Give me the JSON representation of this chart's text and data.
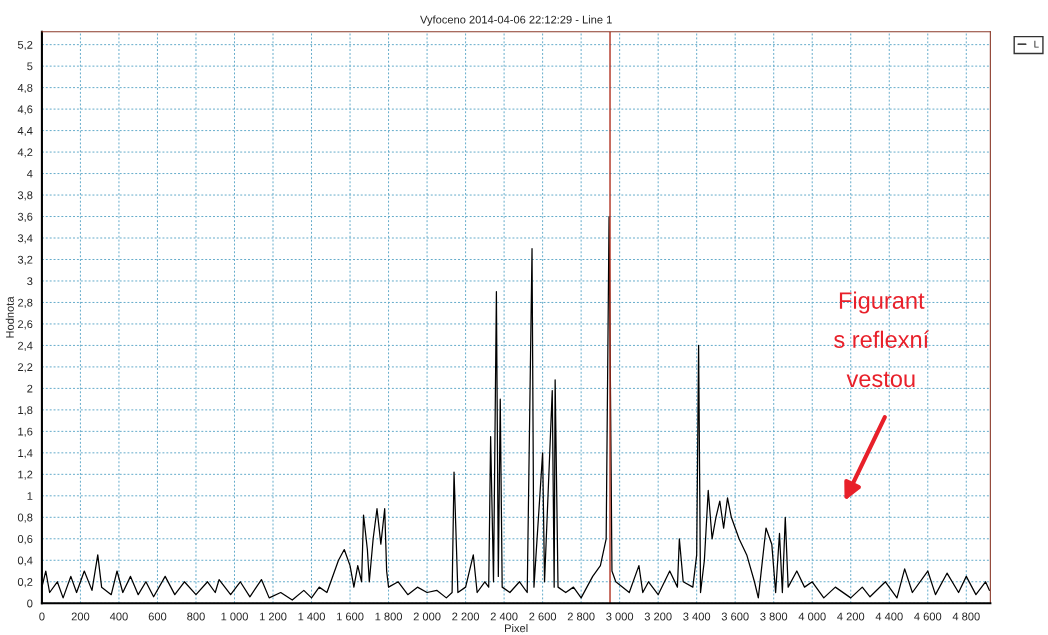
{
  "chart_data": {
    "type": "line",
    "title": "Vyfoceno 2014-04-06 22:12:29 - Line 1",
    "xlabel": "Pixel",
    "ylabel": "Hodnota",
    "xlim": [
      0,
      4925
    ],
    "ylim": [
      0,
      5.32
    ],
    "xticks": [
      0,
      200,
      400,
      600,
      800,
      {
        "value": 1000,
        "label": "1 000"
      },
      {
        "value": 1200,
        "label": "1 200"
      },
      {
        "value": 1400,
        "label": "1 400"
      },
      {
        "value": 1600,
        "label": "1 600"
      },
      {
        "value": 1800,
        "label": "1 800"
      },
      {
        "value": 2000,
        "label": "2 000"
      },
      {
        "value": 2200,
        "label": "2 200"
      },
      {
        "value": 2400,
        "label": "2 400"
      },
      {
        "value": 2600,
        "label": "2 600"
      },
      {
        "value": 2800,
        "label": "2 800"
      },
      {
        "value": 3000,
        "label": "3 000"
      },
      {
        "value": 3200,
        "label": "3 200"
      },
      {
        "value": 3400,
        "label": "3 400"
      },
      {
        "value": 3600,
        "label": "3 600"
      },
      {
        "value": 3800,
        "label": "3 800"
      },
      {
        "value": 4000,
        "label": "4 000"
      },
      {
        "value": 4200,
        "label": "4 200"
      },
      {
        "value": 4400,
        "label": "4 400"
      },
      {
        "value": 4600,
        "label": "4 600"
      },
      {
        "value": 4800,
        "label": "4 800"
      }
    ],
    "yticks": [
      0,
      {
        "value": 0.2,
        "label": "0,2"
      },
      {
        "value": 0.4,
        "label": "0,4"
      },
      {
        "value": 0.6,
        "label": "0,6"
      },
      {
        "value": 0.8,
        "label": "0,8"
      },
      1,
      {
        "value": 1.2,
        "label": "1,2"
      },
      {
        "value": 1.4,
        "label": "1,4"
      },
      {
        "value": 1.6,
        "label": "1,6"
      },
      {
        "value": 1.8,
        "label": "1,8"
      },
      2,
      {
        "value": 2.2,
        "label": "2,2"
      },
      {
        "value": 2.4,
        "label": "2,4"
      },
      {
        "value": 2.6,
        "label": "2,6"
      },
      {
        "value": 2.8,
        "label": "2,8"
      },
      3,
      {
        "value": 3.2,
        "label": "3,2"
      },
      {
        "value": 3.4,
        "label": "3,4"
      },
      {
        "value": 3.6,
        "label": "3,6"
      },
      {
        "value": 3.8,
        "label": "3,8"
      },
      4,
      {
        "value": 4.2,
        "label": "4,2"
      },
      {
        "value": 4.4,
        "label": "4,4"
      },
      {
        "value": 4.6,
        "label": "4,6"
      },
      {
        "value": 4.8,
        "label": "4,8"
      },
      5,
      {
        "value": 5.2,
        "label": "5,2"
      }
    ],
    "grid": true,
    "legend": "right",
    "marker": "none",
    "line_style": "solid",
    "ref_lines": [
      {
        "axis": "x",
        "value": 2950,
        "color": "#b03020",
        "line_style": "solid"
      }
    ],
    "annotations": [
      "Figurant\ns reflexní\nvestou"
    ],
    "series": [
      {
        "name": "L",
        "color": "#000000",
        "x": [
          0,
          20,
          40,
          80,
          110,
          150,
          180,
          220,
          260,
          290,
          310,
          360,
          390,
          420,
          460,
          500,
          540,
          580,
          640,
          690,
          740,
          800,
          860,
          900,
          920,
          980,
          1030,
          1080,
          1140,
          1180,
          1240,
          1300,
          1360,
          1400,
          1440,
          1480,
          1500,
          1540,
          1570,
          1600,
          1620,
          1640,
          1660,
          1670,
          1690,
          1700,
          1720,
          1740,
          1760,
          1780,
          1790,
          1800,
          1850,
          1900,
          1950,
          2000,
          2050,
          2100,
          2130,
          2140,
          2160,
          2200,
          2240,
          2260,
          2300,
          2320,
          2330,
          2345,
          2360,
          2370,
          2380,
          2390,
          2430,
          2480,
          2520,
          2545,
          2555,
          2600,
          2610,
          2650,
          2660,
          2665,
          2680,
          2720,
          2760,
          2800,
          2860,
          2900,
          2930,
          2945,
          2960,
          2980,
          3050,
          3100,
          3120,
          3150,
          3200,
          3260,
          3300,
          3310,
          3330,
          3380,
          3400,
          3410,
          3420,
          3440,
          3460,
          3480,
          3500,
          3520,
          3540,
          3560,
          3580,
          3620,
          3660,
          3700,
          3720,
          3760,
          3790,
          3810,
          3830,
          3845,
          3860,
          3875,
          3920,
          3960,
          4000,
          4060,
          4120,
          4200,
          4260,
          4300,
          4380,
          4440,
          4480,
          4520,
          4600,
          4640,
          4700,
          4760,
          4800,
          4850,
          4900,
          4920
        ],
        "values": [
          0.15,
          0.3,
          0.1,
          0.2,
          0.05,
          0.25,
          0.1,
          0.3,
          0.12,
          0.45,
          0.15,
          0.08,
          0.3,
          0.1,
          0.25,
          0.08,
          0.2,
          0.06,
          0.25,
          0.08,
          0.2,
          0.08,
          0.2,
          0.1,
          0.22,
          0.08,
          0.2,
          0.06,
          0.22,
          0.05,
          0.1,
          0.03,
          0.12,
          0.05,
          0.15,
          0.1,
          0.2,
          0.4,
          0.5,
          0.35,
          0.15,
          0.35,
          0.2,
          0.82,
          0.5,
          0.2,
          0.6,
          0.88,
          0.55,
          0.88,
          0.3,
          0.15,
          0.2,
          0.08,
          0.15,
          0.1,
          0.12,
          0.05,
          0.1,
          1.22,
          0.1,
          0.15,
          0.45,
          0.1,
          0.2,
          0.15,
          1.55,
          0.2,
          2.9,
          0.25,
          1.9,
          0.15,
          0.1,
          0.2,
          0.1,
          3.3,
          0.15,
          1.4,
          0.2,
          1.98,
          0.15,
          2.08,
          0.15,
          0.1,
          0.15,
          0.05,
          0.25,
          0.35,
          0.6,
          3.6,
          0.3,
          0.2,
          0.1,
          0.35,
          0.1,
          0.2,
          0.08,
          0.3,
          0.15,
          0.6,
          0.2,
          0.15,
          0.45,
          2.4,
          0.1,
          0.4,
          1.05,
          0.6,
          0.8,
          0.95,
          0.7,
          0.98,
          0.8,
          0.6,
          0.45,
          0.2,
          0.05,
          0.7,
          0.55,
          0.1,
          0.65,
          0.1,
          0.8,
          0.15,
          0.3,
          0.15,
          0.2,
          0.05,
          0.15,
          0.05,
          0.15,
          0.06,
          0.2,
          0.05,
          0.32,
          0.1,
          0.3,
          0.08,
          0.28,
          0.1,
          0.25,
          0.08,
          0.2,
          0.12
        ]
      }
    ]
  }
}
